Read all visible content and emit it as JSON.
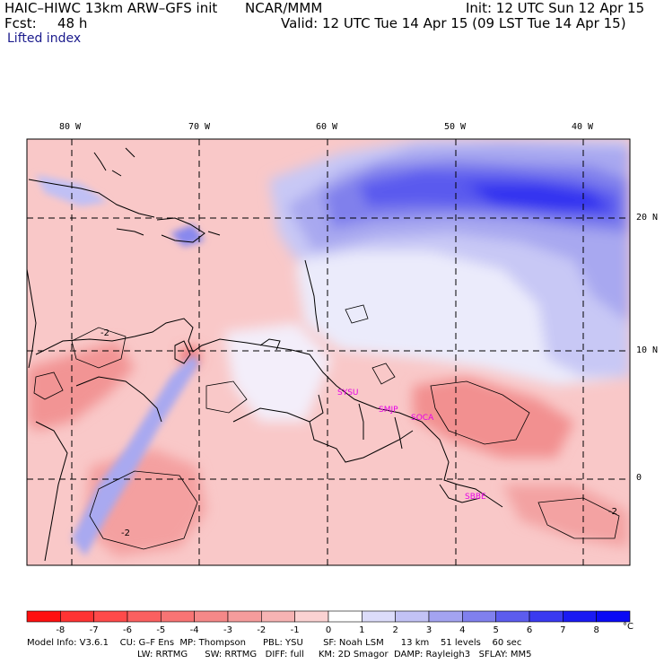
{
  "header": {
    "model_title": "HAIC–HIWC 13km ARW–GFS init",
    "org": "NCAR/MMM",
    "init": "Init: 12 UTC Sun 12 Apr 15",
    "fcst_label": "Fcst:",
    "fcst_value": "48 h",
    "valid": "Valid: 12 UTC Tue 14 Apr 15 (09 LST Tue 14 Apr 15)",
    "field_name": "Lifted index"
  },
  "axes": {
    "lon_labels": [
      "80 W",
      "70 W",
      "60 W",
      "50 W",
      "40 W"
    ],
    "lat_labels": [
      "20 N",
      "10 N",
      "0"
    ]
  },
  "map": {
    "contour_labels": [
      "-2",
      "-2",
      "-2"
    ],
    "stations": [
      "SYSU",
      "SMJP",
      "SOCA",
      "SBBE"
    ],
    "station_color": "#e600e6"
  },
  "colorbar": {
    "tick_labels": [
      "-8",
      "-7",
      "-6",
      "-5",
      "-4",
      "-3",
      "-2",
      "-1",
      "0",
      "1",
      "2",
      "3",
      "4",
      "5",
      "6",
      "7",
      "8"
    ],
    "unit": "°C",
    "colors": [
      "#ff1010",
      "#ff3333",
      "#ff4a4a",
      "#fb6060",
      "#f87474",
      "#f58888",
      "#f59c9c",
      "#f7b3b3",
      "#fbd2d2",
      "#ffffff",
      "#dcdcfa",
      "#c2c2f5",
      "#a3a3f0",
      "#8080ee",
      "#5c5cee",
      "#3a3af0",
      "#1a1af3",
      "#0a0af5"
    ]
  },
  "footer": {
    "line1": "Model Info: V3.6.1    CU: G–F Ens  MP: Thompson      PBL: YSU       SF: Noah LSM      13 km    51 levels    60 sec",
    "line2": "LW: RRTMG      SW: RRTMG   DIFF: full     KM: 2D Smagor  DAMP: Rayleigh3   SFLAY: MM5"
  }
}
